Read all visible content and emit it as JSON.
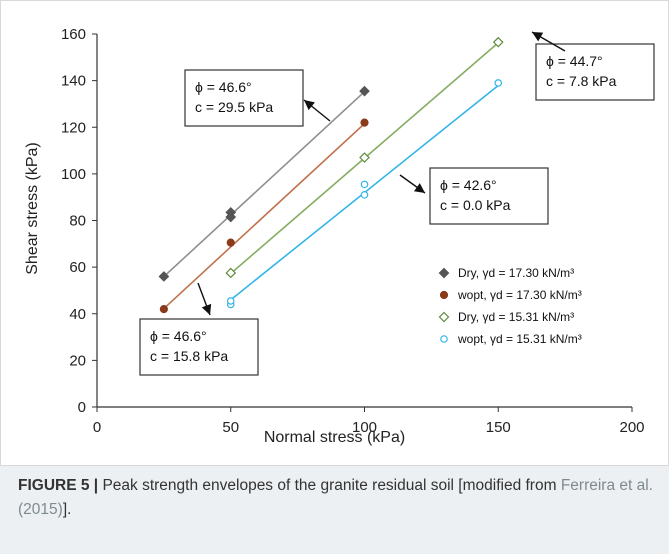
{
  "chart_data": {
    "type": "scatter",
    "xlabel": "Normal stress (kPa)",
    "ylabel": "Shear stress (kPa)",
    "xlim": [
      0,
      200
    ],
    "ylim": [
      0,
      160
    ],
    "xticks": [
      "0",
      "50",
      "100",
      "150",
      "200"
    ],
    "yticks": [
      "0",
      "20",
      "40",
      "60",
      "80",
      "100",
      "120",
      "140",
      "160"
    ],
    "grid": false,
    "legend_position": "bottom-right",
    "series": [
      {
        "name": "Dry, γd = 17.30 kN/m³",
        "marker": "filled-diamond",
        "color": "#555555",
        "line_color": "#8f8f8f",
        "points": [
          [
            25,
            56
          ],
          [
            50,
            81.5
          ],
          [
            50,
            83.5
          ],
          [
            100,
            135.5
          ]
        ],
        "fit": {
          "phi_deg": 46.6,
          "c_kpa": 29.5,
          "from": 25,
          "to": 100
        }
      },
      {
        "name": "wopt, γd = 17.30 kN/m³",
        "marker": "filled-circle",
        "color": "#8b3a1a",
        "line_color": "#c0714d",
        "points": [
          [
            25,
            42
          ],
          [
            50,
            70.5
          ],
          [
            100,
            122
          ]
        ],
        "fit": {
          "phi_deg": 46.6,
          "c_kpa": 15.8,
          "from": 25,
          "to": 100
        }
      },
      {
        "name": "Dry, γd = 15.31 kN/m³",
        "marker": "open-diamond",
        "color": "#5f8c3c",
        "line_color": "#84ad62",
        "points": [
          [
            50,
            57.5
          ],
          [
            100,
            107
          ],
          [
            150,
            156.5
          ]
        ],
        "fit": {
          "phi_deg": 44.7,
          "c_kpa": 7.8,
          "from": 50,
          "to": 150
        }
      },
      {
        "name": "wopt, γd = 15.31 kN/m³",
        "marker": "open-circle",
        "color": "#33b5e8",
        "line_color": "#33b5e8",
        "points": [
          [
            50,
            44
          ],
          [
            50,
            45.5
          ],
          [
            100,
            91
          ],
          [
            100,
            95.5
          ],
          [
            150,
            139
          ]
        ],
        "fit": {
          "phi_deg": 42.6,
          "c_kpa": 0.0,
          "from": 50,
          "to": 150
        }
      }
    ],
    "annotations": [
      {
        "line1": "ϕ = 46.6°",
        "line2": "c = 29.5 kPa",
        "series": 0
      },
      {
        "line1": "ϕ = 46.6°",
        "line2": "c = 15.8 kPa",
        "series": 1
      },
      {
        "line1": "ϕ = 44.7°",
        "line2": "c = 7.8 kPa",
        "series": 2
      },
      {
        "line1": "ϕ = 42.6°",
        "line2": "c = 0.0 kPa",
        "series": 3
      }
    ]
  },
  "caption": {
    "label": "FIGURE 5 |",
    "text": " Peak strength envelopes of the granite residual soil [modified from ",
    "reference": "Ferreira et al. (2015)",
    "end": "]."
  }
}
